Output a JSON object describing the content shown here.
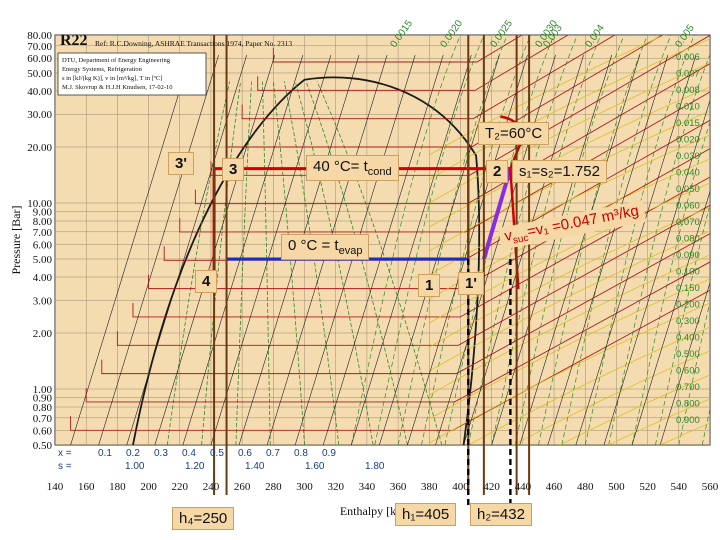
{
  "header": {
    "refrigerant": "R22",
    "reference": "Ref: R.C.Downing, ASHRAE Transactions 1974, Paper No. 2313",
    "infobox": [
      "DTU, Department of Energy Engineering",
      "Energy Systems, Refrigeration",
      "s in [kJ/(kg K)], v in [m³/kg], T in [ºC]",
      "M.J. Skovrup & H.J.H Knudsen, 17-02-10"
    ]
  },
  "axes": {
    "y_label": "Pressure [Bar]",
    "y_ticks": [
      "80.00",
      "70.00",
      "60.00",
      "50.00",
      "40.00",
      "30.00",
      "20.00",
      "10.00",
      "9.00",
      "8.00",
      "7.00",
      "6.00",
      "5.00",
      "4.00",
      "3.00",
      "2.00",
      "1.00",
      "0.90",
      "0.80",
      "0.70",
      "0.60",
      "0.50"
    ],
    "x_label": "Enthalpy [kJ/kg]",
    "x_ticks": [
      "140",
      "160",
      "180",
      "200",
      "220",
      "240",
      "260",
      "280",
      "300",
      "320",
      "340",
      "360",
      "380",
      "400",
      "420",
      "440",
      "460",
      "480",
      "500",
      "520",
      "540",
      "560"
    ],
    "x_quality_row_label": "x =",
    "x_quality_values": [
      "0.1",
      "0.2",
      "0.3",
      "0.4",
      "0.5",
      "0.6",
      "0.7",
      "0.8",
      "0.9"
    ],
    "s_row_label": "s =",
    "s_row_values": [
      "1.00",
      "1.20",
      "1.40",
      "1.60",
      "1.80"
    ],
    "top_volume_labels": [
      "0.0015",
      "0.0020",
      "0.0025",
      "0.0030",
      "0.003",
      "0.004",
      "0.005"
    ],
    "right_volume_labels": [
      "0.006",
      "0.007",
      "0.008",
      "0.010",
      "0.015",
      "0.020",
      "0.030",
      "0.040",
      "0.050",
      "0.060",
      "0.070",
      "0.080",
      "0.090",
      "0.100",
      "0.150",
      "0.200",
      "0.300",
      "0.400",
      "0.500",
      "0.600",
      "0.700",
      "0.800",
      "0.900"
    ]
  },
  "annotations": {
    "t2": "T₂=60°C",
    "tcond": "40 °C= t",
    "tcond_sub": "cond",
    "tevap": "0 °C = t",
    "tevap_sub": "evap",
    "s_label": "s₁=s₂=1.752",
    "v_label": "v",
    "v_sub": "suc",
    "v_rest": "=v₁ =0.047 m³/kg",
    "h4": "h₄=250",
    "h1": "h₁=405",
    "h2": "h₂=432",
    "points": [
      "3'",
      "3",
      "2",
      "4",
      "1",
      "1'"
    ]
  },
  "colors": {
    "background": "#f5dcb0",
    "grid_black": "#1a1a1a",
    "isotherm_red": "#b01818",
    "green_lines": "#2a8a2a",
    "volume_yellow": "#d8c020",
    "cycle_red": "#d00000",
    "cycle_blue": "#1030d0",
    "compression_purple": "#8a2be2",
    "enthalpy_marker": "#6b3a12"
  },
  "chart_data": {
    "type": "diagram",
    "cycle": {
      "h1": 405,
      "h1prime": 415,
      "h2": 432,
      "h3": 250,
      "h3prime": 242,
      "h4": 250,
      "p_cond": 15.3,
      "p_evap": 5.0,
      "t_cond": 40,
      "t_evap": 0,
      "t2": 60,
      "s1": 1.752,
      "v1": 0.047
    }
  }
}
